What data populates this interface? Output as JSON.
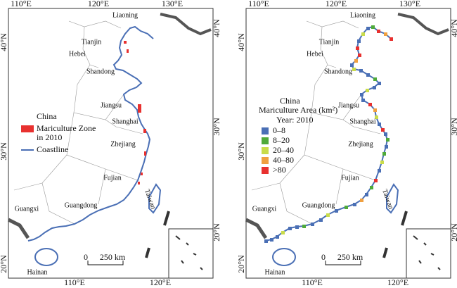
{
  "panels": [
    {
      "top_labels": [
        "110°E",
        "120°E",
        "130°E"
      ],
      "bottom_labels": [
        "110°E",
        "120°E"
      ],
      "left_labels": [
        "40°N",
        "30°N",
        "20°N"
      ],
      "right_labels": [
        "40°N",
        "30°N",
        "20°N"
      ],
      "places": [
        "Liaoning",
        "Tianjin",
        "Hebei",
        "Shandong",
        "Jiangsu",
        "Shanghai",
        "Zhejiang",
        "Fujian",
        "Guangdong",
        "Guangxi",
        "Hainan",
        "Taiwan"
      ],
      "legend": {
        "title": "China",
        "items": [
          {
            "label": "Mariculture Zone in 2010",
            "color": "#e8312f"
          },
          {
            "label": "Coastline",
            "color": "#4a6fb5"
          }
        ]
      },
      "scale": {
        "zero": "0",
        "length": "250 km"
      }
    },
    {
      "top_labels": [
        "110°E",
        "120°E",
        "130°E"
      ],
      "bottom_labels": [
        "110°E",
        "120°E"
      ],
      "left_labels": [
        "40°N",
        "30°N",
        "20°N"
      ],
      "right_labels": [
        "40°N",
        "30°N",
        "20°N"
      ],
      "places": [
        "Liaoning",
        "Tianjin",
        "Hebei",
        "Shandong",
        "Jiangsu",
        "Shanghai",
        "Zhejiang",
        "Fujian",
        "Guangdong",
        "Guangxi",
        "Hainan",
        "Taiwan"
      ],
      "legend": {
        "title": "China",
        "subtitle": "Mariculture Area (km²)",
        "year": "Year: 2010",
        "items": [
          {
            "label": "0–8",
            "color": "#4a6fb5"
          },
          {
            "label": "8–20",
            "color": "#4faa3a"
          },
          {
            "label": "20–40",
            "color": "#c9dc4a"
          },
          {
            "label": "40–80",
            "color": "#f0a040"
          },
          {
            "label": ">80",
            "color": "#e8312f"
          }
        ]
      },
      "scale": {
        "zero": "0",
        "length": "250 km"
      }
    }
  ]
}
